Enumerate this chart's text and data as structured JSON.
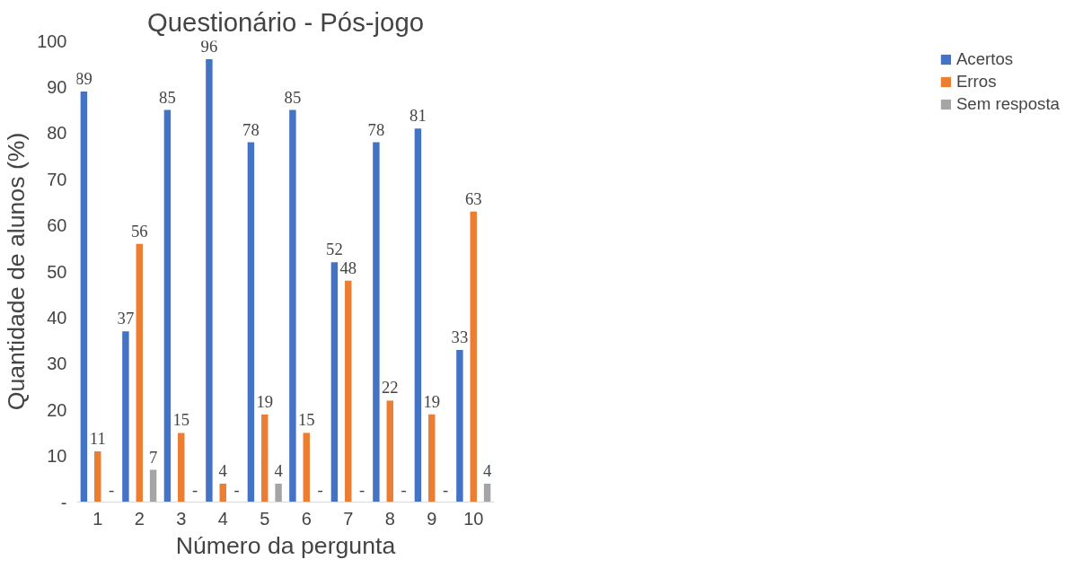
{
  "chart_data": {
    "type": "bar",
    "title": "Questionário - Pós-jogo",
    "xlabel": "Número da pergunta",
    "ylabel": "Quantidade de alunos (%)",
    "categories": [
      "1",
      "2",
      "3",
      "4",
      "5",
      "6",
      "7",
      "8",
      "9",
      "10"
    ],
    "series": [
      {
        "name": "Acertos",
        "color": "#4472c4",
        "values": [
          89,
          37,
          85,
          96,
          78,
          85,
          52,
          78,
          81,
          33
        ],
        "value_labels": [
          "89",
          "37",
          "85",
          "96",
          "78",
          "85",
          "52",
          "78",
          "81",
          "33"
        ]
      },
      {
        "name": "Erros",
        "color": "#ed7d31",
        "values": [
          11,
          56,
          15,
          4,
          19,
          15,
          48,
          22,
          19,
          63
        ],
        "value_labels": [
          "11",
          "56",
          "15",
          "4",
          "19",
          "15",
          "48",
          "22",
          "19",
          "63"
        ]
      },
      {
        "name": "Sem resposta",
        "color": "#a5a5a5",
        "values": [
          0,
          7,
          0,
          0,
          4,
          0,
          0,
          0,
          0,
          4
        ],
        "value_labels": [
          "-",
          "7",
          "-",
          "-",
          "4",
          "-",
          "-",
          "-",
          "-",
          "4"
        ]
      }
    ],
    "ylim": [
      0,
      100
    ],
    "yticks": [
      {
        "value": 0,
        "label": "-"
      },
      10,
      20,
      30,
      40,
      50,
      60,
      70,
      80,
      90,
      100
    ],
    "grid": false,
    "legend": "right"
  }
}
